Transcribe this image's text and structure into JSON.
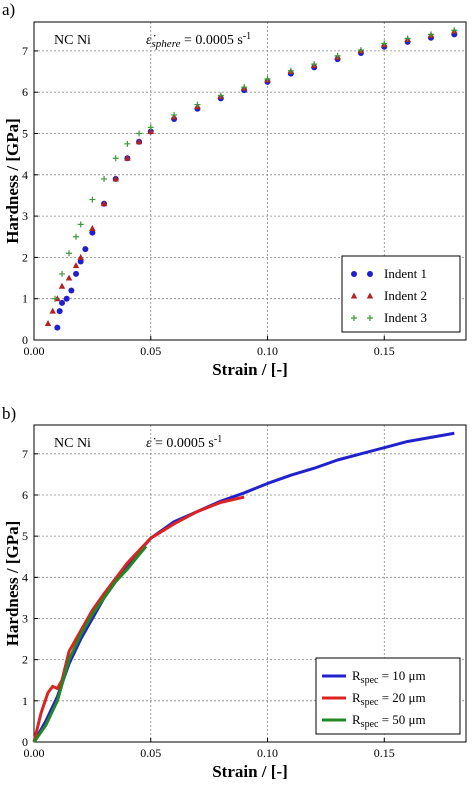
{
  "panels": {
    "a": {
      "label": "a)"
    },
    "b": {
      "label": "b)"
    }
  },
  "chart_data": [
    {
      "id": "a",
      "type": "scatter",
      "xlabel": "Strain / [-]",
      "ylabel": "Hardness / [GPa]",
      "xlim": [
        0,
        0.185
      ],
      "ylim": [
        0,
        7.7
      ],
      "xticks": [
        "0.00",
        "0.05",
        "0.10",
        "0.15"
      ],
      "xtick_values": [
        0,
        0.05,
        0.1,
        0.15
      ],
      "yticks": [
        "0",
        "1",
        "2",
        "3",
        "4",
        "5",
        "6",
        "7"
      ],
      "ytick_values": [
        0,
        1,
        2,
        3,
        4,
        5,
        6,
        7
      ],
      "grid": true,
      "annotations": [
        {
          "text": "NC Ni",
          "kind": "sample"
        },
        {
          "text": "ε̇sphere = 0.0005 s-1",
          "kind": "rate",
          "main": "ε̇",
          "sub": "sphere",
          "rest": " = 0.0005 s",
          "sup": "-1"
        }
      ],
      "legend_position": "bottom-right",
      "series": [
        {
          "name": "Indent 1",
          "marker": "circle",
          "color": "#1f1fcc",
          "x": [
            0.01,
            0.011,
            0.012,
            0.014,
            0.016,
            0.018,
            0.02,
            0.022,
            0.025,
            0.03,
            0.035,
            0.04,
            0.045,
            0.05,
            0.06,
            0.07,
            0.08,
            0.09,
            0.1,
            0.11,
            0.12,
            0.13,
            0.14,
            0.15,
            0.16,
            0.17,
            0.18
          ],
          "y": [
            0.3,
            0.7,
            0.9,
            1.0,
            1.2,
            1.6,
            1.9,
            2.2,
            2.6,
            3.3,
            3.9,
            4.4,
            4.8,
            5.05,
            5.35,
            5.6,
            5.85,
            6.05,
            6.25,
            6.45,
            6.6,
            6.8,
            6.95,
            7.1,
            7.22,
            7.32,
            7.4
          ]
        },
        {
          "name": "Indent 2",
          "marker": "triangle",
          "color": "#b22222",
          "x": [
            0.006,
            0.008,
            0.01,
            0.012,
            0.015,
            0.018,
            0.02,
            0.025,
            0.03,
            0.035,
            0.04,
            0.045,
            0.05,
            0.06,
            0.07,
            0.08,
            0.09,
            0.1,
            0.11,
            0.12,
            0.13,
            0.14,
            0.15,
            0.16,
            0.17,
            0.18
          ],
          "y": [
            0.4,
            0.7,
            1.0,
            1.3,
            1.5,
            1.8,
            2.0,
            2.7,
            3.3,
            3.9,
            4.4,
            4.8,
            5.05,
            5.4,
            5.65,
            5.9,
            6.1,
            6.3,
            6.5,
            6.65,
            6.85,
            7.0,
            7.15,
            7.28,
            7.38,
            7.48
          ]
        },
        {
          "name": "Indent 3",
          "marker": "plus",
          "color": "#3a9a3a",
          "x": [
            0.009,
            0.012,
            0.015,
            0.018,
            0.02,
            0.025,
            0.03,
            0.035,
            0.04,
            0.045,
            0.05,
            0.06,
            0.07,
            0.08,
            0.09,
            0.1,
            0.11,
            0.12,
            0.13,
            0.14,
            0.15,
            0.16,
            0.17,
            0.18
          ],
          "y": [
            1.0,
            1.6,
            2.1,
            2.5,
            2.8,
            3.4,
            3.9,
            4.4,
            4.75,
            5.0,
            5.15,
            5.45,
            5.7,
            5.92,
            6.12,
            6.32,
            6.52,
            6.68,
            6.88,
            7.02,
            7.18,
            7.3,
            7.4,
            7.5
          ]
        }
      ]
    },
    {
      "id": "b",
      "type": "line",
      "xlabel": "Strain / [-]",
      "ylabel": "Hardness / [GPa]",
      "xlim": [
        0,
        0.185
      ],
      "ylim": [
        0,
        7.7
      ],
      "xticks": [
        "0.00",
        "0.05",
        "0.10",
        "0.15"
      ],
      "xtick_values": [
        0,
        0.05,
        0.1,
        0.15
      ],
      "yticks": [
        "0",
        "1",
        "2",
        "3",
        "4",
        "5",
        "6",
        "7"
      ],
      "ytick_values": [
        0,
        1,
        2,
        3,
        4,
        5,
        6,
        7
      ],
      "grid": true,
      "annotations": [
        {
          "text": "NC Ni",
          "kind": "sample"
        },
        {
          "text": "ε̇ = 0.0005 s-1",
          "kind": "rate",
          "main": "ε̇",
          "sub": "",
          "rest": " = 0.0005 s",
          "sup": "-1"
        }
      ],
      "legend_position": "bottom-right",
      "series": [
        {
          "name": "Rspec = 10 μm",
          "name_main": "R",
          "name_sub": "spec",
          "name_rest": " = 10 μm",
          "color": "#2222cc",
          "x": [
            0.0,
            0.005,
            0.01,
            0.015,
            0.02,
            0.025,
            0.03,
            0.04,
            0.05,
            0.06,
            0.07,
            0.08,
            0.09,
            0.1,
            0.11,
            0.12,
            0.13,
            0.14,
            0.15,
            0.16,
            0.17,
            0.18
          ],
          "y": [
            0.0,
            0.5,
            1.1,
            1.9,
            2.5,
            3.0,
            3.5,
            4.3,
            4.95,
            5.35,
            5.6,
            5.85,
            6.05,
            6.28,
            6.48,
            6.65,
            6.85,
            7.0,
            7.15,
            7.3,
            7.4,
            7.5
          ]
        },
        {
          "name": "Rspec = 20 μm",
          "name_main": "R",
          "name_sub": "spec",
          "name_rest": " = 20 μm",
          "color": "#dd2222",
          "x": [
            0.0,
            0.003,
            0.006,
            0.008,
            0.01,
            0.012,
            0.015,
            0.02,
            0.025,
            0.03,
            0.04,
            0.05,
            0.06,
            0.07,
            0.08,
            0.09
          ],
          "y": [
            0.0,
            0.7,
            1.2,
            1.35,
            1.3,
            1.5,
            2.2,
            2.7,
            3.2,
            3.6,
            4.35,
            4.95,
            5.3,
            5.6,
            5.82,
            5.95
          ]
        },
        {
          "name": "Rspec = 50 μm",
          "name_main": "R",
          "name_sub": "spec",
          "name_rest": " = 50 μm",
          "color": "#228822",
          "x": [
            0.0,
            0.005,
            0.01,
            0.015,
            0.02,
            0.025,
            0.03,
            0.035,
            0.04,
            0.045,
            0.048
          ],
          "y": [
            0.0,
            0.4,
            1.0,
            2.0,
            2.6,
            3.1,
            3.5,
            3.9,
            4.2,
            4.55,
            4.75
          ]
        }
      ]
    }
  ]
}
